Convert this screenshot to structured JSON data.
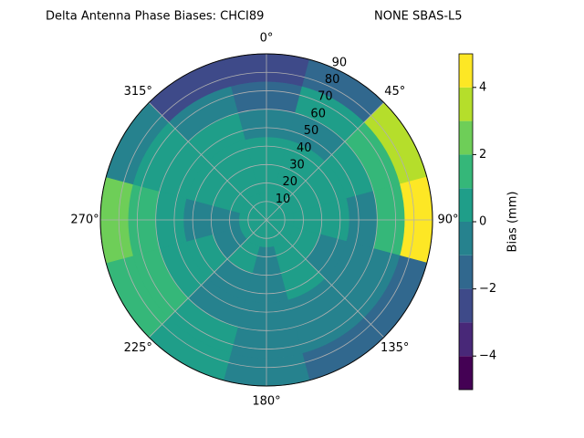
{
  "chart_data": {
    "type": "polar_contour",
    "title": "Delta Antenna Phase Biases: CHCI89",
    "subtitle": "NONE SBAS-L5",
    "colorbar_label": "Bias (mm)",
    "theta": [
      0,
      30,
      60,
      90,
      120,
      150,
      180,
      210,
      240,
      270,
      300,
      330
    ],
    "r_bins": [
      0,
      15,
      30,
      45,
      60,
      75,
      90
    ],
    "values": [
      [
        0.5,
        0.5,
        0.5,
        -0.5,
        -1.5,
        -2.5
      ],
      [
        0.5,
        0.5,
        0.5,
        -0.5,
        0.5,
        -1.5
      ],
      [
        0.5,
        0.5,
        0.5,
        0.5,
        1.5,
        3.5
      ],
      [
        0.5,
        0.5,
        0.5,
        -0.5,
        1.5,
        4.5
      ],
      [
        0.5,
        0.5,
        -0.5,
        -0.5,
        -0.5,
        -1.5
      ],
      [
        0.5,
        0.5,
        0.5,
        -0.5,
        -0.5,
        -1.5
      ],
      [
        0.5,
        -0.5,
        -0.5,
        -0.5,
        -0.5,
        -0.5
      ],
      [
        0.5,
        0.5,
        -0.5,
        -0.5,
        0.5,
        0.5
      ],
      [
        0.5,
        -0.5,
        0.5,
        0.5,
        1.5,
        1.5
      ],
      [
        0.5,
        -0.5,
        -0.5,
        0.5,
        1.5,
        2.5
      ],
      [
        0.5,
        0.5,
        0.5,
        0.5,
        0.5,
        -0.5
      ],
      [
        0.5,
        0.5,
        0.5,
        0.5,
        -0.5,
        -2.5
      ]
    ],
    "levels": [
      -5,
      -4,
      -3,
      -2,
      -1,
      0,
      1,
      2,
      3,
      4,
      5
    ],
    "colors": [
      "#440154",
      "#482878",
      "#3e4a89",
      "#31688e",
      "#26828e",
      "#1f9e89",
      "#35b779",
      "#6ece58",
      "#b5de2b",
      "#fde725"
    ],
    "rlim": [
      0,
      90
    ],
    "rticks": [
      10,
      20,
      30,
      40,
      50,
      60,
      70,
      80,
      90
    ],
    "thetaticks": [
      {
        "value": 0,
        "label": "0°"
      },
      {
        "value": 45,
        "label": "45°"
      },
      {
        "value": 90,
        "label": "90°"
      },
      {
        "value": 135,
        "label": "135°"
      },
      {
        "value": 180,
        "label": "180°"
      },
      {
        "value": 225,
        "label": "225°"
      },
      {
        "value": 270,
        "label": "270°"
      },
      {
        "value": 315,
        "label": "315°"
      }
    ],
    "clim": [
      -5,
      5
    ],
    "cticks": [
      {
        "value": -4,
        "label": "−4"
      },
      {
        "value": -2,
        "label": "−2"
      },
      0,
      2,
      4
    ],
    "grid": true
  }
}
